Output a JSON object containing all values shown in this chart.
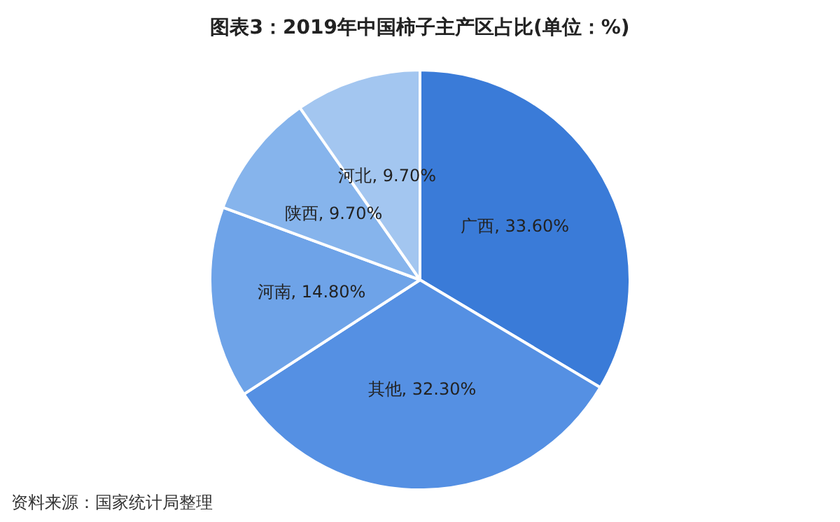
{
  "chart_data": {
    "type": "pie",
    "title": "图表3：2019年中国柿子主产区占比(单位：%)",
    "categories": [
      "广西",
      "其他",
      "河南",
      "陕西",
      "河北"
    ],
    "values": [
      33.6,
      32.3,
      14.8,
      9.7,
      9.7
    ],
    "value_labels": [
      "33.60%",
      "32.30%",
      "14.80%",
      "9.70%",
      "9.70%"
    ],
    "colors": [
      "#3a7bd8",
      "#5590e3",
      "#6ea3e8",
      "#86b4ec",
      "#a3c6f0"
    ],
    "legend": false,
    "annotations": [
      "资料来源：国家统计局整理"
    ]
  }
}
